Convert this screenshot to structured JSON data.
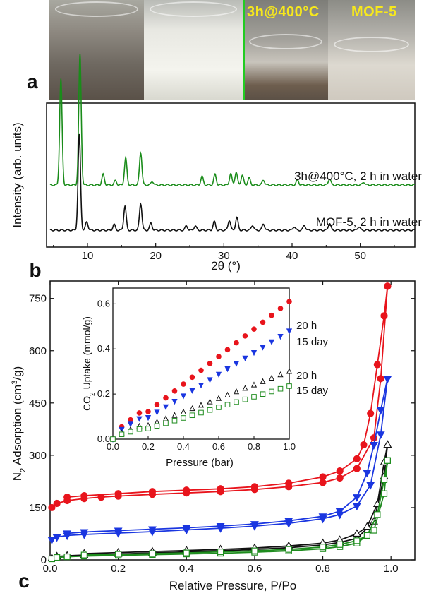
{
  "photos": {
    "labels": [
      "3h@400°C",
      "MOF-5"
    ],
    "panel_letter": "a",
    "colors": {
      "divider": "#22cc22",
      "label": "#f7e81c"
    }
  },
  "chart_data": [
    {
      "type": "line",
      "panel": "b",
      "xlabel": "2θ (°)",
      "ylabel": "Intensity (arb. units)",
      "xlim": [
        4,
        58
      ],
      "xticks": [
        10,
        20,
        30,
        40,
        50
      ],
      "yticks": [],
      "grid": false,
      "series": [
        {
          "name": "3h@400°C, 2 h in water",
          "color": "#1a8c1a",
          "peaks": [
            [
              6.1,
              150
            ],
            [
              8.9,
              185
            ],
            [
              12.3,
              15
            ],
            [
              14.1,
              6
            ],
            [
              15.6,
              38
            ],
            [
              17.8,
              46
            ],
            [
              19.5,
              5
            ],
            [
              26.8,
              12
            ],
            [
              28.7,
              15
            ],
            [
              31.0,
              16
            ],
            [
              31.8,
              18
            ],
            [
              32.7,
              14
            ],
            [
              33.7,
              10
            ],
            [
              35.8,
              7
            ],
            [
              40.8,
              7
            ],
            [
              45.5,
              9
            ],
            [
              50.5,
              4
            ]
          ]
        },
        {
          "name": "MOF-5, 2 h in water",
          "color": "#111111",
          "peaks": [
            [
              8.8,
              135
            ],
            [
              9.9,
              12
            ],
            [
              13.9,
              8
            ],
            [
              15.5,
              34
            ],
            [
              17.8,
              38
            ],
            [
              19.3,
              10
            ],
            [
              24.5,
              6
            ],
            [
              25.8,
              6
            ],
            [
              28.6,
              12
            ],
            [
              30.8,
              14
            ],
            [
              31.9,
              18
            ],
            [
              34.2,
              7
            ],
            [
              35.8,
              9
            ],
            [
              40.3,
              5
            ],
            [
              41.8,
              7
            ],
            [
              45.5,
              10
            ],
            [
              49.8,
              5
            ]
          ]
        }
      ]
    },
    {
      "type": "line",
      "panel": "c",
      "xlabel": "Relative Pressure, P/Po",
      "ylabel": "N2 Adsorption (cm3/g)",
      "xlim": [
        0,
        1.07
      ],
      "ylim": [
        0,
        800
      ],
      "xticks": [
        0.0,
        0.2,
        0.4,
        0.6,
        0.8,
        1.0
      ],
      "yticks": [
        0,
        150,
        300,
        450,
        600,
        750
      ],
      "grid": false,
      "series": [
        {
          "color": "#e8141c",
          "marker": "circle",
          "filled": true,
          "adsorption": [
            [
              0.005,
              150
            ],
            [
              0.02,
              162
            ],
            [
              0.05,
              170
            ],
            [
              0.1,
              176
            ],
            [
              0.15,
              180
            ],
            [
              0.2,
              183
            ],
            [
              0.3,
              188
            ],
            [
              0.4,
              192
            ],
            [
              0.5,
              196
            ],
            [
              0.6,
              202
            ],
            [
              0.7,
              210
            ],
            [
              0.8,
              222
            ],
            [
              0.85,
              235
            ],
            [
              0.9,
              262
            ],
            [
              0.95,
              350
            ],
            [
              0.97,
              520
            ],
            [
              0.99,
              785
            ]
          ],
          "desorption": [
            [
              0.99,
              785
            ],
            [
              0.98,
              700
            ],
            [
              0.96,
              560
            ],
            [
              0.94,
              420
            ],
            [
              0.92,
              330
            ],
            [
              0.9,
              290
            ],
            [
              0.85,
              255
            ],
            [
              0.8,
              238
            ],
            [
              0.7,
              220
            ],
            [
              0.6,
              210
            ],
            [
              0.5,
              204
            ],
            [
              0.4,
              200
            ],
            [
              0.3,
              196
            ],
            [
              0.2,
              190
            ],
            [
              0.1,
              184
            ],
            [
              0.05,
              180
            ]
          ]
        },
        {
          "color": "#1a36e0",
          "marker": "triangle-down",
          "filled": true,
          "adsorption": [
            [
              0.005,
              58
            ],
            [
              0.02,
              65
            ],
            [
              0.05,
              70
            ],
            [
              0.1,
              73
            ],
            [
              0.2,
              77
            ],
            [
              0.3,
              81
            ],
            [
              0.4,
              86
            ],
            [
              0.5,
              91
            ],
            [
              0.6,
              97
            ],
            [
              0.7,
              105
            ],
            [
              0.8,
              118
            ],
            [
              0.85,
              130
            ],
            [
              0.9,
              155
            ],
            [
              0.94,
              215
            ],
            [
              0.97,
              360
            ],
            [
              0.99,
              520
            ]
          ],
          "desorption": [
            [
              0.99,
              520
            ],
            [
              0.97,
              430
            ],
            [
              0.95,
              330
            ],
            [
              0.93,
              250
            ],
            [
              0.9,
              180
            ],
            [
              0.85,
              140
            ],
            [
              0.8,
              125
            ],
            [
              0.7,
              112
            ],
            [
              0.6,
              103
            ],
            [
              0.5,
              97
            ],
            [
              0.4,
              92
            ],
            [
              0.3,
              88
            ],
            [
              0.2,
              84
            ],
            [
              0.1,
              80
            ],
            [
              0.05,
              76
            ]
          ]
        },
        {
          "color": "#111111",
          "marker": "triangle-up",
          "filled": false,
          "adsorption": [
            [
              0.005,
              5
            ],
            [
              0.02,
              10
            ],
            [
              0.05,
              12
            ],
            [
              0.1,
              14
            ],
            [
              0.2,
              17
            ],
            [
              0.3,
              20
            ],
            [
              0.4,
              23
            ],
            [
              0.5,
              26
            ],
            [
              0.6,
              30
            ],
            [
              0.7,
              35
            ],
            [
              0.8,
              43
            ],
            [
              0.85,
              50
            ],
            [
              0.9,
              62
            ],
            [
              0.95,
              110
            ],
            [
              0.98,
              240
            ],
            [
              0.99,
              330
            ]
          ],
          "desorption": [
            [
              0.99,
              330
            ],
            [
              0.98,
              280
            ],
            [
              0.96,
              160
            ],
            [
              0.93,
              95
            ],
            [
              0.9,
              75
            ],
            [
              0.85,
              57
            ],
            [
              0.8,
              48
            ],
            [
              0.7,
              40
            ],
            [
              0.6,
              34
            ],
            [
              0.5,
              30
            ],
            [
              0.4,
              27
            ],
            [
              0.3,
              24
            ],
            [
              0.2,
              21
            ],
            [
              0.1,
              18
            ]
          ]
        },
        {
          "color": "#1e8c1e",
          "marker": "square",
          "filled": false,
          "adsorption": [
            [
              0.005,
              3
            ],
            [
              0.02,
              7
            ],
            [
              0.05,
              9
            ],
            [
              0.1,
              11
            ],
            [
              0.2,
              13
            ],
            [
              0.3,
              15
            ],
            [
              0.4,
              17
            ],
            [
              0.5,
              19
            ],
            [
              0.6,
              22
            ],
            [
              0.7,
              26
            ],
            [
              0.8,
              32
            ],
            [
              0.85,
              38
            ],
            [
              0.9,
              48
            ],
            [
              0.95,
              85
            ],
            [
              0.98,
              190
            ],
            [
              0.99,
              285
            ]
          ],
          "desorption": [
            [
              0.99,
              285
            ],
            [
              0.98,
              230
            ],
            [
              0.96,
              130
            ],
            [
              0.93,
              70
            ],
            [
              0.9,
              55
            ],
            [
              0.85,
              44
            ],
            [
              0.8,
              37
            ],
            [
              0.7,
              30
            ],
            [
              0.6,
              26
            ],
            [
              0.5,
              23
            ],
            [
              0.4,
              20
            ],
            [
              0.3,
              18
            ],
            [
              0.2,
              16
            ],
            [
              0.1,
              14
            ]
          ]
        }
      ]
    },
    {
      "type": "scatter",
      "panel": "c-inset",
      "xlabel": "Pressure (bar)",
      "ylabel": "CO2 Uptake (mmol/g)",
      "xlim": [
        0,
        1.0
      ],
      "ylim": [
        0,
        0.67
      ],
      "xticks": [
        0.0,
        0.2,
        0.4,
        0.6,
        0.8,
        1.0
      ],
      "yticks": [
        0.0,
        0.2,
        0.4,
        0.6
      ],
      "series": [
        {
          "name": "20 h",
          "color": "#e8141c",
          "marker": "circle",
          "filled": true,
          "slope": 0.61
        },
        {
          "name": "15 day",
          "color": "#1a36e0",
          "marker": "triangle-down",
          "filled": true,
          "slope": 0.48
        },
        {
          "name": "20 h",
          "color": "#111111",
          "marker": "triangle-up",
          "filled": false,
          "slope": 0.3
        },
        {
          "name": "15 day",
          "color": "#1e8c1e",
          "marker": "square",
          "filled": false,
          "slope": 0.235
        }
      ]
    }
  ]
}
